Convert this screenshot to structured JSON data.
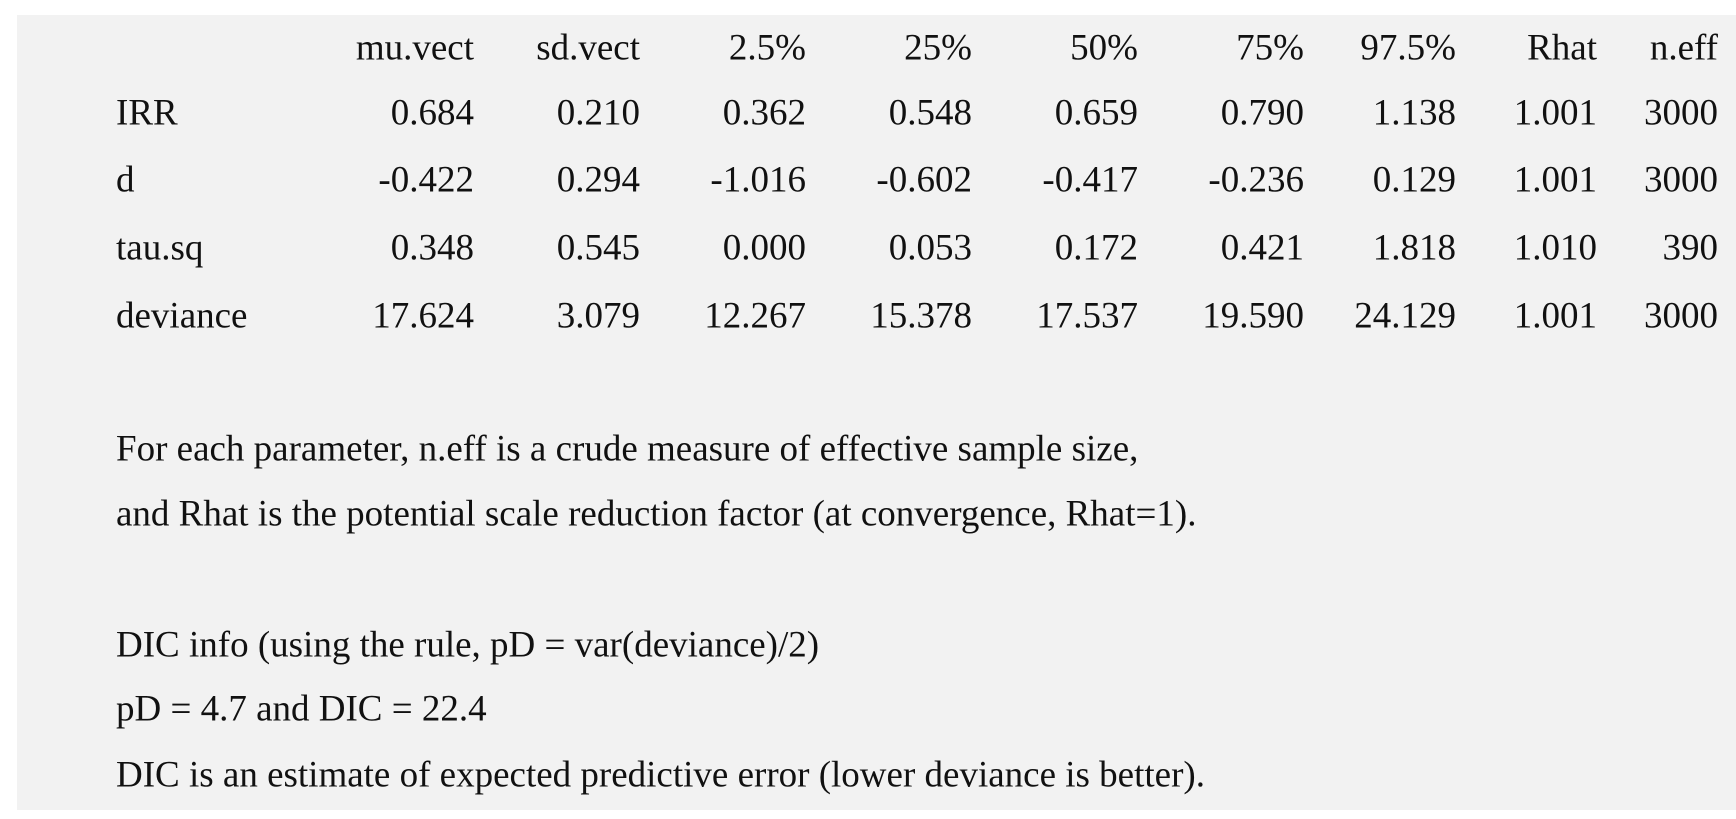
{
  "table": {
    "columns": [
      "mu.vect",
      "sd.vect",
      "2.5%",
      "25%",
      "50%",
      "75%",
      "97.5%",
      "Rhat",
      "n.eff"
    ],
    "rows": [
      {
        "label": "IRR",
        "cells": [
          "0.684",
          "0.210",
          "0.362",
          "0.548",
          "0.659",
          "0.790",
          "1.138",
          "1.001",
          "3000"
        ]
      },
      {
        "label": "d",
        "cells": [
          "-0.422",
          "0.294",
          "-1.016",
          "-0.602",
          "-0.417",
          "-0.236",
          "0.129",
          "1.001",
          "3000"
        ]
      },
      {
        "label": "tau.sq",
        "cells": [
          "0.348",
          "0.545",
          "0.000",
          "0.053",
          "0.172",
          "0.421",
          "1.818",
          "1.010",
          "390"
        ]
      },
      {
        "label": "deviance",
        "cells": [
          "17.624",
          "3.079",
          "12.267",
          "15.378",
          "17.537",
          "19.590",
          "24.129",
          "1.001",
          "3000"
        ]
      }
    ]
  },
  "notes": [
    "For each parameter, n.eff is a crude measure of effective sample size,",
    "and Rhat is the potential scale reduction factor (at convergence, Rhat=1).",
    "DIC info (using the rule, pD = var(deviance)/2)",
    "pD = 4.7 and DIC = 22.4",
    "DIC is an estimate of expected predictive error (lower deviance is better)."
  ]
}
